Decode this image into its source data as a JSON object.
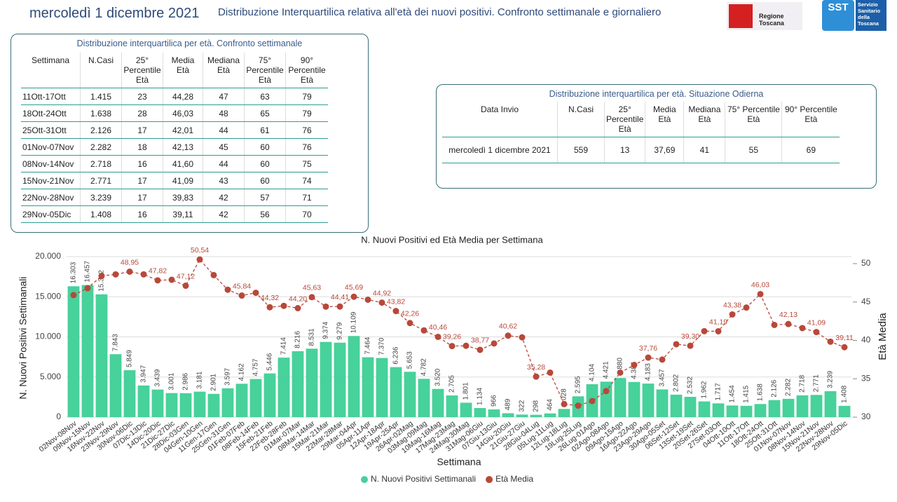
{
  "header": {
    "date": "mercoledì 1 dicembre 2021",
    "title": "Distribuzione Interquartilica relativa all'età dei nuovi positivi. Confronto settimanale e giornaliero",
    "logo_left": "Regione Toscana",
    "logo_right_short": "SST",
    "logo_right_text": "Servizio Sanitario della Toscana"
  },
  "weekly_table": {
    "title": "Distribuzione interquartilica per età. Confronto settimanale",
    "headers": [
      "Settimana",
      "N.Casi",
      "25° Percentile Età",
      "Media Età",
      "Mediana Età",
      "75° Percentile Età",
      "90° Percentile Età"
    ],
    "rows": [
      [
        "11Ott-17Ott",
        "1.415",
        "23",
        "44,28",
        "47",
        "63",
        "79"
      ],
      [
        "18Ott-24Ott",
        "1.638",
        "28",
        "46,03",
        "48",
        "65",
        "79"
      ],
      [
        "25Ott-31Ott",
        "2.126",
        "17",
        "42,01",
        "44",
        "61",
        "76"
      ],
      [
        "01Nov-07Nov",
        "2.282",
        "18",
        "42,13",
        "45",
        "60",
        "76"
      ],
      [
        "08Nov-14Nov",
        "2.718",
        "16",
        "41,60",
        "44",
        "60",
        "75"
      ],
      [
        "15Nov-21Nov",
        "2.771",
        "17",
        "41,09",
        "43",
        "60",
        "74"
      ],
      [
        "22Nov-28Nov",
        "3.239",
        "17",
        "39,83",
        "42",
        "57",
        "71"
      ],
      [
        "29Nov-05Dic",
        "1.408",
        "16",
        "39,11",
        "42",
        "56",
        "70"
      ]
    ]
  },
  "daily_table": {
    "title": "Distribuzione interquartilica per età. Situazione Odierna",
    "headers": [
      "Data Invio",
      "N.Casi",
      "25° Percentile Età",
      "Media Età",
      "Mediana Età",
      "75° Percentile Età",
      "90° Percentile Età"
    ],
    "rows": [
      [
        "mercoledì 1 dicembre 2021",
        "559",
        "13",
        "37,69",
        "41",
        "55",
        "69"
      ]
    ]
  },
  "chart_data": {
    "type": "bar_line",
    "title": "N. Nuovi Positivi ed Età Media per Settimana",
    "x_label": "Settimana",
    "y_label": "N. Nuovi Positivi Settimanali",
    "y2_label": "Età Media",
    "categories": [
      "02Nov-08Nov",
      "09Nov-15Nov",
      "16Nov-22Nov",
      "23Nov-29Nov",
      "30Nov-06Dic",
      "07Dic-13Dic",
      "14Dic-20Dic",
      "21Dic-27Dic",
      "28Dic-03Gen",
      "04Gen-10Gen",
      "11Gen-17Gen",
      "25Gen-31Gen",
      "01Feb-07Feb",
      "08Feb-14Feb",
      "15Feb-21Feb",
      "22Feb-28Feb",
      "01Mar-07Mar",
      "08Mar-14Mar",
      "15Mar-21Mar",
      "22Mar-28Mar",
      "29Mar-04Apr",
      "05Apr-11Apr",
      "12Apr-18Apr",
      "19Apr-25Apr",
      "26Apr-02Mag",
      "03Mag-09Mag",
      "10Mag-16Mag",
      "17Mag-23Mag",
      "24Mag-30Mag",
      "31Mag-06Giu",
      "07Giu-13Giu",
      "14Giu-20Giu",
      "21Giu-27Giu",
      "28Giu-04Lug",
      "05Lug-11Lug",
      "12Lug-18Lug",
      "19Lug-25Lug",
      "26Lug-01Ago",
      "02Ago-08Ago",
      "09Ago-15Ago",
      "16Ago-22Ago",
      "23Ago-29Ago",
      "30Ago-05Set",
      "06Set-12Set",
      "13Set-19Set",
      "20Set-26Set",
      "27Set-03Ott",
      "04Ott-10Ott",
      "11Ott-17Ott",
      "18Ott-24Ott",
      "25Ott-31Ott",
      "01Nov-07Nov",
      "08Nov-14Nov",
      "15Nov-21Nov",
      "22Nov-28Nov",
      "29Nov-05Dic"
    ],
    "series": [
      {
        "name": "N. Nuovi Positivi Settimanali",
        "color": "#47d19b",
        "kind": "bar",
        "values": [
          16303,
          16457,
          15302,
          7843,
          5849,
          3947,
          3439,
          3001,
          2986,
          3181,
          2901,
          3597,
          4162,
          4757,
          5446,
          7414,
          8216,
          8531,
          9374,
          9279,
          10109,
          7464,
          7370,
          6236,
          5653,
          4782,
          3520,
          2705,
          1801,
          1134,
          966,
          489,
          322,
          298,
          464,
          1028,
          2595,
          4104,
          4421,
          4880,
          4385,
          4183,
          3457,
          2802,
          2532,
          1962,
          1717,
          1454,
          1415,
          1638,
          2126,
          2282,
          2718,
          2771,
          3239,
          1408
        ],
        "value_labels": [
          "16.303",
          "16.457",
          "15.302",
          "7.843",
          "5.849",
          "3.947",
          "3.439",
          "3.001",
          "2.986",
          "3.181",
          "2.901",
          "3.597",
          "4.162",
          "4.757",
          "5.446",
          "7.414",
          "8.216",
          "8.531",
          "9.374",
          "9.279",
          "10.109",
          "7.464",
          "7.370",
          "6.236",
          "5.653",
          "4.782",
          "3.520",
          "2.705",
          "1.801",
          "1.134",
          "966",
          "489",
          "322",
          "298",
          "464",
          "1.028",
          "2.595",
          "4.104",
          "4.421",
          "4.880",
          "4.385",
          "4.183",
          "3.457",
          "2.802",
          "2.532",
          "1.962",
          "1.717",
          "1.454",
          "1.415",
          "1.638",
          "2.126",
          "2.282",
          "2.718",
          "2.771",
          "3.239",
          "1.408"
        ]
      },
      {
        "name": "Età Media",
        "color": "#b8483a",
        "kind": "line",
        "axis": "y2",
        "values": [
          45.9,
          46.8,
          48.4,
          48.6,
          48.95,
          48.6,
          47.82,
          47.9,
          47.12,
          50.54,
          48.5,
          46.6,
          45.84,
          46.2,
          44.32,
          44.5,
          44.2,
          45.63,
          44.4,
          44.41,
          45.69,
          45.3,
          44.92,
          43.82,
          42.26,
          41.3,
          40.46,
          39.26,
          39.3,
          38.77,
          39.6,
          40.62,
          40.4,
          35.28,
          35.8,
          31.7,
          31.5,
          32.1,
          33.4,
          35.8,
          36.8,
          37.76,
          37.5,
          39.5,
          39.3,
          41.2,
          41.19,
          43.38,
          44.28,
          46.03,
          42.01,
          42.13,
          41.6,
          41.09,
          39.83,
          39.11
        ],
        "value_labels": [
          null,
          null,
          null,
          null,
          "48,95",
          null,
          "47,82",
          null,
          "47,12",
          "50,54",
          null,
          null,
          "45,84",
          null,
          "44,32",
          null,
          "44,20",
          "45,63",
          null,
          "44,41",
          "45,69",
          null,
          "44,92",
          "43,82",
          "42,26",
          null,
          "40,46",
          "39,26",
          null,
          "38,77",
          null,
          "40,62",
          null,
          "35,28",
          null,
          null,
          null,
          null,
          null,
          null,
          null,
          "37,76",
          null,
          null,
          "39,30",
          null,
          "41,19",
          "43,38",
          null,
          "46,03",
          null,
          "42,13",
          null,
          "41,09",
          null,
          "39,11"
        ]
      }
    ],
    "ylim": [
      0,
      20000
    ],
    "yticks": [
      0,
      {
        "value": 5000,
        "label": "5.000"
      },
      {
        "value": 10000,
        "label": "10.000"
      },
      {
        "value": 15000,
        "label": "15.000"
      },
      {
        "value": 20000,
        "label": "20.000"
      }
    ],
    "y2lim": [
      30,
      50
    ],
    "y2ticks": [
      30,
      35,
      40,
      45,
      50
    ],
    "grid": true,
    "legend": "bottom"
  }
}
